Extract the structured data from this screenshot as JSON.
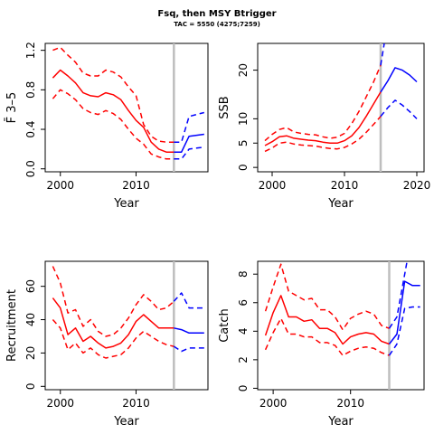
{
  "header": {
    "title": "Fsq, then MSY Btrigger",
    "subtitle": "TAC = 5550 (4275;7259)"
  },
  "colors": {
    "historical": "#ff0000",
    "projection": "#0000ff",
    "marker": "#bebebe"
  },
  "chart_data": [
    {
      "id": "fbar",
      "type": "line",
      "xlabel": "Year",
      "ylabel": "F̄ 3–5",
      "xlim": [
        1998,
        2019.5
      ],
      "ylim": [
        -0.03,
        1.27
      ],
      "xticks": [
        2000,
        2010
      ],
      "yticks": [
        0,
        0.4,
        0.8,
        1.2
      ],
      "ytick_labels": [
        "0.0",
        "0.4",
        "0.8",
        "1.2"
      ],
      "vline": 2015,
      "series": [
        {
          "role": "historical",
          "style": "solid",
          "x": [
            1999,
            2000,
            2001,
            2002,
            2003,
            2004,
            2005,
            2006,
            2007,
            2008,
            2009,
            2010,
            2011,
            2012,
            2013,
            2014,
            2015
          ],
          "y": [
            0.92,
            1.0,
            0.94,
            0.87,
            0.77,
            0.74,
            0.73,
            0.77,
            0.75,
            0.7,
            0.59,
            0.49,
            0.42,
            0.27,
            0.2,
            0.17,
            0.17
          ]
        },
        {
          "role": "historical",
          "style": "dashed",
          "x": [
            1999,
            2000,
            2001,
            2002,
            2003,
            2004,
            2005,
            2006,
            2007,
            2008,
            2009,
            2010,
            2011,
            2012,
            2013,
            2014,
            2015
          ],
          "y": [
            1.2,
            1.23,
            1.15,
            1.08,
            0.97,
            0.94,
            0.94,
            1.0,
            0.98,
            0.93,
            0.83,
            0.74,
            0.45,
            0.33,
            0.28,
            0.27,
            0.27
          ]
        },
        {
          "role": "historical",
          "style": "dashed",
          "x": [
            1999,
            2000,
            2001,
            2002,
            2003,
            2004,
            2005,
            2006,
            2007,
            2008,
            2009,
            2010,
            2011,
            2012,
            2013,
            2014,
            2015
          ],
          "y": [
            0.71,
            0.8,
            0.76,
            0.7,
            0.61,
            0.57,
            0.55,
            0.59,
            0.56,
            0.5,
            0.4,
            0.31,
            0.25,
            0.15,
            0.12,
            0.1,
            0.1
          ]
        },
        {
          "role": "projection",
          "style": "solid",
          "x": [
            2015,
            2016,
            2017,
            2018,
            2019
          ],
          "y": [
            0.17,
            0.17,
            0.33,
            0.34,
            0.35
          ]
        },
        {
          "role": "projection",
          "style": "dashed",
          "x": [
            2015,
            2016,
            2017,
            2018,
            2019
          ],
          "y": [
            0.27,
            0.27,
            0.53,
            0.55,
            0.57
          ]
        },
        {
          "role": "projection",
          "style": "dashed",
          "x": [
            2015,
            2016,
            2017,
            2018,
            2019
          ],
          "y": [
            0.1,
            0.1,
            0.2,
            0.21,
            0.22
          ]
        }
      ]
    },
    {
      "id": "ssb",
      "type": "line",
      "xlabel": "Year",
      "ylabel": "SSB",
      "xlim": [
        1998,
        2021
      ],
      "ylim": [
        -0.9,
        25.5
      ],
      "xticks": [
        2000,
        2010,
        2020
      ],
      "yticks": [
        0,
        5,
        10,
        20
      ],
      "ytick_labels": [
        "0",
        "5",
        "10",
        "20"
      ],
      "vline": 2015,
      "series": [
        {
          "role": "historical",
          "style": "solid",
          "x": [
            1999,
            2000,
            2001,
            2002,
            2003,
            2004,
            2005,
            2006,
            2007,
            2008,
            2009,
            2010,
            2011,
            2012,
            2013,
            2014,
            2015
          ],
          "y": [
            4.5,
            5.3,
            6.3,
            6.5,
            6.0,
            5.8,
            5.6,
            5.5,
            5.2,
            5.0,
            5.0,
            5.5,
            6.5,
            8.2,
            10.5,
            13.0,
            15.5
          ]
        },
        {
          "role": "historical",
          "style": "dashed",
          "x": [
            1999,
            2000,
            2001,
            2002,
            2003,
            2004,
            2005,
            2006,
            2007,
            2008,
            2009,
            2010,
            2011,
            2012,
            2013,
            2014,
            2015
          ],
          "y": [
            5.5,
            6.8,
            7.8,
            8.2,
            7.3,
            7.0,
            6.8,
            6.7,
            6.3,
            6.0,
            6.2,
            7.0,
            9.0,
            11.5,
            14.5,
            17.5,
            21.0
          ]
        },
        {
          "role": "historical",
          "style": "dashed",
          "x": [
            1999,
            2000,
            2001,
            2002,
            2003,
            2004,
            2005,
            2006,
            2007,
            2008,
            2009,
            2010,
            2011,
            2012,
            2013,
            2014,
            2015
          ],
          "y": [
            3.3,
            4.0,
            5.0,
            5.2,
            4.8,
            4.6,
            4.5,
            4.4,
            4.1,
            3.9,
            3.8,
            4.1,
            4.8,
            5.8,
            7.2,
            8.8,
            10.5
          ]
        },
        {
          "role": "projection",
          "style": "solid",
          "x": [
            2015,
            2016,
            2017,
            2018,
            2019,
            2020
          ],
          "y": [
            15.5,
            17.8,
            20.5,
            20.0,
            19.0,
            17.6
          ]
        },
        {
          "role": "projection",
          "style": "dashed",
          "x": [
            2015,
            2015.5
          ],
          "y": [
            21.0,
            25.5
          ]
        },
        {
          "role": "projection",
          "style": "dashed",
          "x": [
            2015,
            2016,
            2017,
            2018,
            2019,
            2020
          ],
          "y": [
            10.5,
            12.3,
            13.8,
            12.8,
            11.5,
            10.0
          ]
        }
      ]
    },
    {
      "id": "recruitment",
      "type": "line",
      "xlabel": "Year",
      "ylabel": "Recruitment",
      "xlim": [
        1998,
        2019.5
      ],
      "ylim": [
        -2,
        75
      ],
      "xticks": [
        2000,
        2010
      ],
      "yticks": [
        0,
        20,
        40,
        60
      ],
      "ytick_labels": [
        "0",
        "20",
        "40",
        "60"
      ],
      "vline": 2015,
      "series": [
        {
          "role": "historical",
          "style": "solid",
          "x": [
            1999,
            2000,
            2001,
            2002,
            2003,
            2004,
            2005,
            2006,
            2007,
            2008,
            2009,
            2010,
            2011,
            2012,
            2013,
            2014,
            2015
          ],
          "y": [
            53,
            47,
            31,
            35,
            27,
            30,
            26,
            23,
            24,
            26,
            31,
            39,
            43,
            39,
            35,
            35,
            35
          ]
        },
        {
          "role": "historical",
          "style": "dashed",
          "x": [
            1999,
            2000,
            2001,
            2002,
            2003,
            2004,
            2005,
            2006,
            2007,
            2008,
            2009,
            2010,
            2011,
            2012,
            2013,
            2014,
            2015
          ],
          "y": [
            72,
            62,
            44,
            46,
            36,
            40,
            33,
            30,
            31,
            35,
            41,
            49,
            55,
            51,
            46,
            47,
            51
          ]
        },
        {
          "role": "historical",
          "style": "dashed",
          "x": [
            1999,
            2000,
            2001,
            2002,
            2003,
            2004,
            2005,
            2006,
            2007,
            2008,
            2009,
            2010,
            2011,
            2012,
            2013,
            2014,
            2015
          ],
          "y": [
            40,
            35,
            22,
            26,
            20,
            23,
            19,
            17,
            18,
            19,
            23,
            29,
            33,
            30,
            27,
            25,
            24
          ]
        },
        {
          "role": "projection",
          "style": "solid",
          "x": [
            2015,
            2016,
            2017,
            2018,
            2019
          ],
          "y": [
            35,
            34,
            32,
            32,
            32
          ]
        },
        {
          "role": "projection",
          "style": "dashed",
          "x": [
            2015,
            2016,
            2017,
            2018,
            2019
          ],
          "y": [
            51,
            56,
            47,
            47,
            47
          ]
        },
        {
          "role": "projection",
          "style": "dashed",
          "x": [
            2015,
            2016,
            2017,
            2018,
            2019
          ],
          "y": [
            24,
            21,
            23,
            23,
            23
          ]
        }
      ]
    },
    {
      "id": "catch",
      "type": "line",
      "xlabel": "Year",
      "ylabel": "Catch",
      "xlim": [
        1998,
        2019.5
      ],
      "ylim": [
        -0.1,
        8.9
      ],
      "xticks": [
        2000,
        2010
      ],
      "yticks": [
        0,
        2,
        4,
        6,
        8
      ],
      "ytick_labels": [
        "0",
        "2",
        "4",
        "6",
        "8"
      ],
      "vline": 2015,
      "series": [
        {
          "role": "historical",
          "style": "solid",
          "x": [
            1999,
            2000,
            2001,
            2002,
            2003,
            2004,
            2005,
            2006,
            2007,
            2008,
            2009,
            2010,
            2011,
            2012,
            2013,
            2014,
            2015
          ],
          "y": [
            3.7,
            5.3,
            6.5,
            5.0,
            5.0,
            4.7,
            4.8,
            4.2,
            4.2,
            3.9,
            3.1,
            3.6,
            3.8,
            3.9,
            3.8,
            3.3,
            3.1
          ]
        },
        {
          "role": "historical",
          "style": "dashed",
          "x": [
            1999,
            2000,
            2001,
            2002,
            2003,
            2004,
            2005,
            2006,
            2007,
            2008,
            2009,
            2010,
            2011,
            2012,
            2013,
            2014,
            2015
          ],
          "y": [
            5.4,
            7.1,
            8.7,
            6.8,
            6.5,
            6.2,
            6.3,
            5.5,
            5.5,
            5.0,
            4.1,
            4.9,
            5.2,
            5.4,
            5.2,
            4.4,
            4.2
          ]
        },
        {
          "role": "historical",
          "style": "dashed",
          "x": [
            1999,
            2000,
            2001,
            2002,
            2003,
            2004,
            2005,
            2006,
            2007,
            2008,
            2009,
            2010,
            2011,
            2012,
            2013,
            2014,
            2015
          ],
          "y": [
            2.7,
            3.9,
            4.9,
            3.8,
            3.8,
            3.6,
            3.6,
            3.2,
            3.2,
            3.0,
            2.3,
            2.6,
            2.8,
            2.9,
            2.8,
            2.5,
            2.3
          ]
        },
        {
          "role": "projection",
          "style": "solid",
          "x": [
            2015,
            2016,
            2017,
            2018,
            2019
          ],
          "y": [
            3.1,
            3.8,
            7.5,
            7.2,
            7.2
          ]
        },
        {
          "role": "projection",
          "style": "dashed",
          "x": [
            2015,
            2016,
            2017.3
          ],
          "y": [
            4.2,
            5.0,
            8.9
          ]
        },
        {
          "role": "projection",
          "style": "dashed",
          "x": [
            2015,
            2016,
            2017,
            2018,
            2019
          ],
          "y": [
            2.3,
            3.1,
            5.6,
            5.7,
            5.7
          ]
        }
      ]
    }
  ]
}
